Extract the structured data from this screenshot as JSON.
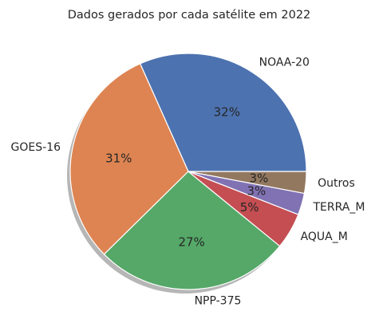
{
  "chart_data": {
    "type": "pie",
    "title": "Dados gerados por cada satélite em 2022",
    "slices": [
      {
        "label": "NOAA-20",
        "value": 32,
        "pct_label": "32%",
        "color": "#4c72b0"
      },
      {
        "label": "GOES-16",
        "value": 31,
        "pct_label": "31%",
        "color": "#dd8452"
      },
      {
        "label": "NPP-375",
        "value": 27,
        "pct_label": "27%",
        "color": "#55a868"
      },
      {
        "label": "AQUA_M",
        "value": 5,
        "pct_label": "5%",
        "color": "#c44e52"
      },
      {
        "label": "TERRA_M",
        "value": 3,
        "pct_label": "3%",
        "color": "#8172b3"
      },
      {
        "label": "Outros",
        "value": 3,
        "pct_label": "3%",
        "color": "#937860"
      }
    ],
    "start_angle_deg": 0,
    "direction": "counterclockwise",
    "shadow": true
  }
}
